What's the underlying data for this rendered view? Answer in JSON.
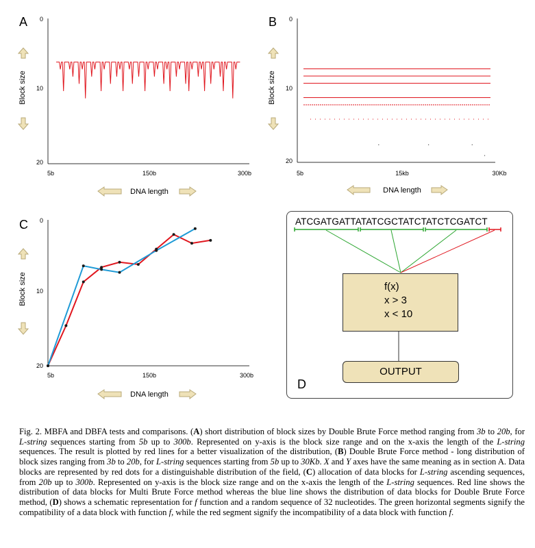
{
  "panels": {
    "A": {
      "label": "A",
      "ylabel": "Block size",
      "xlabel": "DNA length",
      "yticks": [
        "0",
        "10",
        "20"
      ],
      "xticks": [
        "5b",
        "150b",
        "300b"
      ]
    },
    "B": {
      "label": "B",
      "ylabel": "Block size",
      "xlabel": "DNA length",
      "yticks": [
        "0",
        "10",
        "20"
      ],
      "xticks": [
        "5b",
        "15kb",
        "30Kb"
      ]
    },
    "C": {
      "label": "C",
      "ylabel": "Block size",
      "xlabel": "DNA length",
      "yticks": [
        "0",
        "10",
        "20"
      ],
      "xticks": [
        "5b",
        "150b",
        "300b"
      ]
    },
    "D": {
      "label": "D",
      "sequence": "ATCGATGATTATATCGCTATCTATCTCGATCT",
      "function_lines": [
        "f(x)",
        "x > 3",
        "x < 10"
      ],
      "output_label": "OUTPUT"
    }
  },
  "chart_data": [
    {
      "panel": "A",
      "type": "line",
      "color": "#e0161e",
      "xlim": [
        5,
        300
      ],
      "ylim": [
        20,
        0
      ],
      "y_axis_inverted": true,
      "description_values": "block sizes fluctuating between about 6 and 11 across DNA lengths 5b to 300b",
      "x": [
        5,
        10,
        15,
        20,
        25,
        30,
        35,
        40,
        45,
        50,
        55,
        60,
        65,
        70,
        75,
        80,
        85,
        90,
        95,
        100,
        105,
        110,
        115,
        120,
        125,
        130,
        135,
        140,
        145,
        150,
        155,
        160,
        165,
        170,
        175,
        180,
        185,
        190,
        195,
        200,
        205,
        210,
        215,
        220,
        225,
        230,
        235,
        240,
        245,
        250,
        255,
        260,
        265,
        270,
        275,
        280,
        285,
        290,
        295
      ],
      "y": [
        6,
        7,
        10,
        6,
        7,
        8,
        6,
        9,
        7,
        11,
        6,
        8,
        7,
        6,
        10,
        7,
        6,
        9,
        6,
        8,
        7,
        10,
        6,
        7,
        9,
        6,
        8,
        6,
        10,
        7,
        6,
        8,
        7,
        6,
        9,
        7,
        10,
        6,
        8,
        7,
        6,
        9,
        10,
        7,
        6,
        8,
        7,
        10,
        6,
        9,
        7,
        6,
        8,
        10,
        7,
        6,
        11,
        7,
        6
      ]
    },
    {
      "panel": "B",
      "type": "scatter",
      "color": "#e0161e",
      "xlim": [
        5,
        30000
      ],
      "ylim": [
        20,
        0
      ],
      "y_axis_inverted": true,
      "horizontal_lines_at": [
        7,
        8,
        9,
        11,
        12,
        14
      ],
      "sparse_points": [
        [
          12000,
          17.5
        ],
        [
          20000,
          17.5
        ],
        [
          27000,
          17.5
        ],
        [
          29000,
          19
        ]
      ]
    },
    {
      "panel": "C",
      "type": "line",
      "xlim": [
        5,
        300
      ],
      "ylim": [
        20,
        0
      ],
      "y_axis_inverted": true,
      "series": [
        {
          "color": "#e0161e",
          "x": [
            5,
            32,
            58,
            85,
            112,
            140,
            167,
            193,
            220,
            248
          ],
          "y": [
            20,
            14.5,
            8.5,
            6.5,
            5.8,
            6.1,
            4,
            2,
            3.2,
            2.8
          ]
        },
        {
          "color": "#1e9ad6",
          "x": [
            5,
            58,
            85,
            112,
            167,
            225
          ],
          "y": [
            20,
            6.3,
            6.8,
            7.2,
            4.2,
            1.2
          ]
        }
      ]
    }
  ],
  "caption": {
    "html": "Fig. 2. MBFA and DBFA tests and comparisons. (<b>A</b>) short distribution of block sizes by Double Brute Force method ranging from <i>3b</i> to <i>20b</i>, for <i>L-string</i> sequences starting from <i>5b</i> up to <i>300b</i>. Represented on y-axis is the block size range and on the x-axis the length of the <i>L-string</i> sequences. The result is plotted by red lines for a better visualization of the distribution, (<b>B</b>) Double Brute Force method - long distribution of block sizes ranging from <i>3b</i> to <i>20b</i>, for <i>L-string</i> sequences starting from <i>5b</i> up to <i>30Kb</i>. <i>X</i> and <i>Y</i> axes have the same meaning as in section A. Data blocks are represented by red dots for a distinguishable distribution of the field, (<b>C</b>) allocation of data blocks for <i>L-string</i> ascending sequences, from <i>20b</i> up to <i>300b</i>. Represented on y-axis is the block size range and on the x-axis the length of the <i>L-string</i> sequences. Red line shows the distribution of data blocks for Multi Brute Force method whereas the blue line shows the distribution of data blocks for Double Brute Force method, (<b>D</b>) shows a schematic representation for <i>f</i> function and a random sequence of 32 nucleotides. The green horizontal segments signify the compatibility of a data block with function <i>f</i>, while the red segment signify the incompatibility of a data block with function <i>f</i>."
  }
}
